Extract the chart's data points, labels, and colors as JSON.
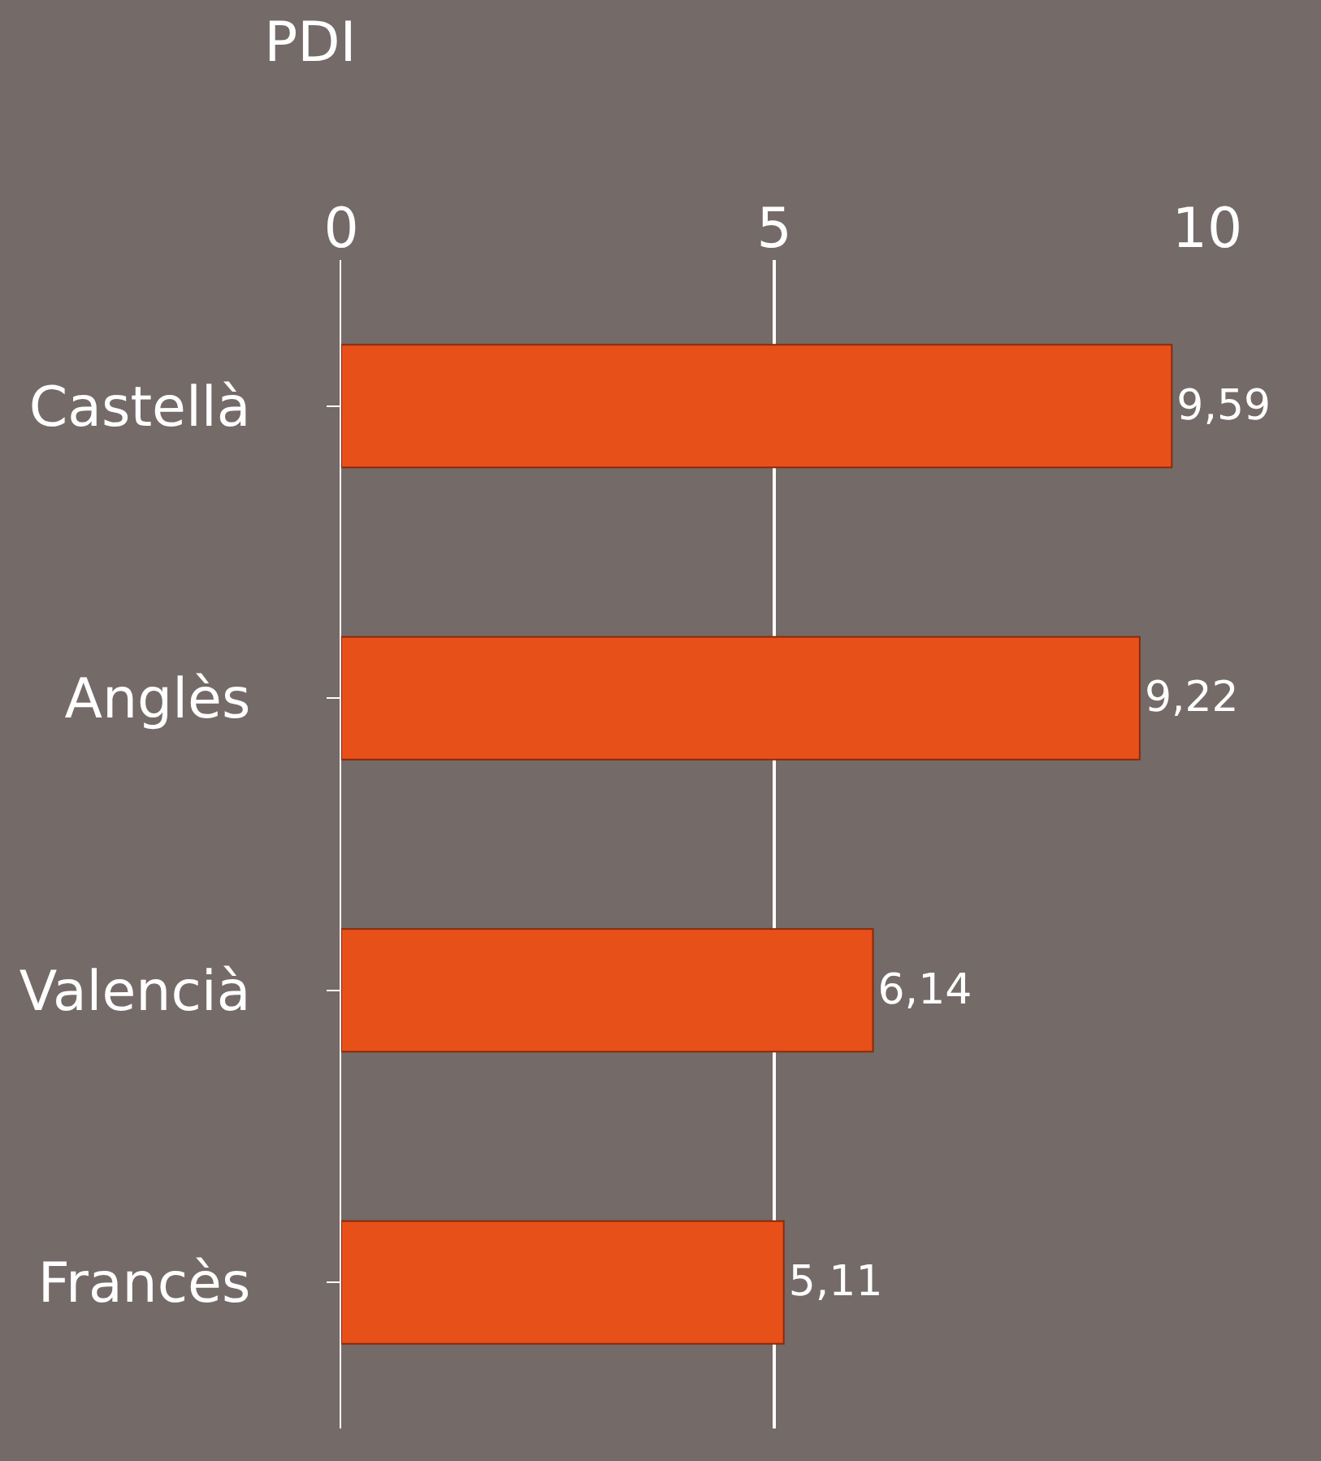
{
  "chart_data": {
    "type": "bar",
    "orientation": "horizontal",
    "title": "PDI",
    "categories": [
      "Castellà",
      "Anglès",
      "Valencià",
      "Francès"
    ],
    "values": [
      9.59,
      9.22,
      6.14,
      5.11
    ],
    "value_labels": [
      "9,59",
      "9,22",
      "6,14",
      "5,11"
    ],
    "color": "#e8501a",
    "xlim": [
      0,
      10
    ],
    "xticks": [
      0,
      5,
      10
    ],
    "grid": "x",
    "legend": false
  }
}
